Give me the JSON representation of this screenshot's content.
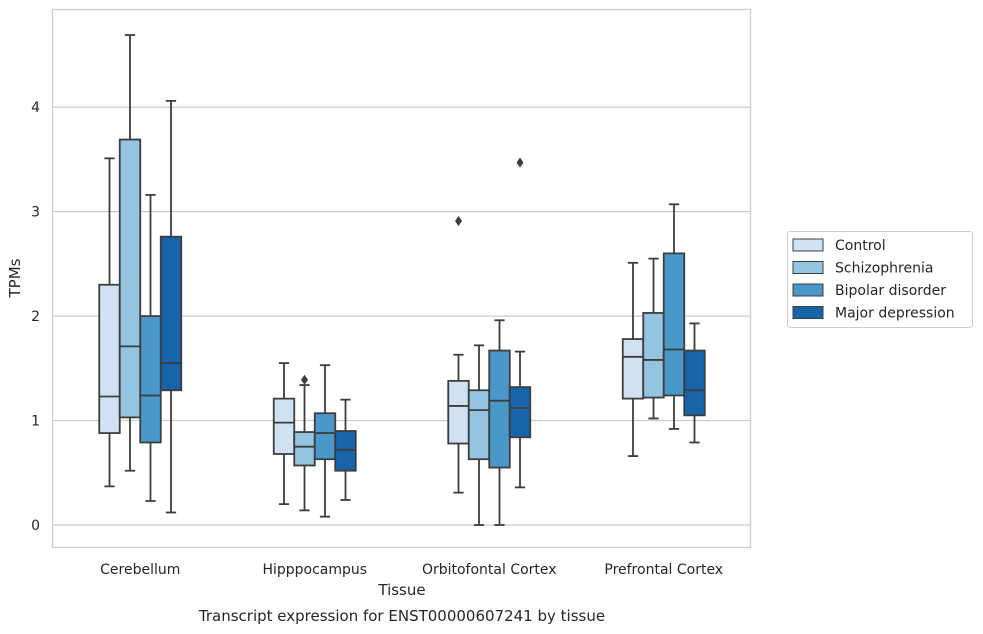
{
  "chart_data": {
    "type": "box",
    "title": "",
    "caption": "Transcript expression for ENST00000607241 by tissue",
    "xlabel": "Tissue",
    "ylabel": "TPMs",
    "ylim": [
      -0.22,
      4.93
    ],
    "yticks": [
      "0",
      "1",
      "2",
      "3",
      "4"
    ],
    "grid": true,
    "legend_position": "right",
    "categories": [
      "Cerebellum",
      "Hipppocampus",
      "Orbitofontal Cortex",
      "Prefrontal Cortex"
    ],
    "series": [
      {
        "name": "Control",
        "color": "#d0e1f2",
        "boxes": [
          {
            "whislo": 0.37,
            "q1": 0.88,
            "med": 1.23,
            "q3": 2.3,
            "whishi": 3.51,
            "fliers": []
          },
          {
            "whislo": 0.2,
            "q1": 0.68,
            "med": 0.98,
            "q3": 1.21,
            "whishi": 1.55,
            "fliers": []
          },
          {
            "whislo": 0.31,
            "q1": 0.78,
            "med": 1.14,
            "q3": 1.38,
            "whishi": 1.63,
            "fliers": [
              2.91
            ]
          },
          {
            "whislo": 0.66,
            "q1": 1.21,
            "med": 1.61,
            "q3": 1.78,
            "whishi": 2.51,
            "fliers": []
          }
        ]
      },
      {
        "name": "Schizophrenia",
        "color": "#94c4df",
        "boxes": [
          {
            "whislo": 0.52,
            "q1": 1.03,
            "med": 1.71,
            "q3": 3.69,
            "whishi": 4.69,
            "fliers": []
          },
          {
            "whislo": 0.14,
            "q1": 0.57,
            "med": 0.75,
            "q3": 0.89,
            "whishi": 1.34,
            "fliers": [
              1.39
            ]
          },
          {
            "whislo": 0.0,
            "q1": 0.63,
            "med": 1.1,
            "q3": 1.29,
            "whishi": 1.72,
            "fliers": []
          },
          {
            "whislo": 1.02,
            "q1": 1.22,
            "med": 1.58,
            "q3": 2.03,
            "whishi": 2.55,
            "fliers": []
          }
        ]
      },
      {
        "name": "Bipolar disorder",
        "color": "#4a98c9",
        "boxes": [
          {
            "whislo": 0.23,
            "q1": 0.79,
            "med": 1.24,
            "q3": 2.0,
            "whishi": 3.16,
            "fliers": []
          },
          {
            "whislo": 0.08,
            "q1": 0.63,
            "med": 0.88,
            "q3": 1.07,
            "whishi": 1.53,
            "fliers": []
          },
          {
            "whislo": 0.0,
            "q1": 0.55,
            "med": 1.19,
            "q3": 1.67,
            "whishi": 1.96,
            "fliers": []
          },
          {
            "whislo": 0.92,
            "q1": 1.24,
            "med": 1.68,
            "q3": 2.6,
            "whishi": 3.07,
            "fliers": []
          }
        ]
      },
      {
        "name": "Major depression",
        "color": "#1764ab",
        "boxes": [
          {
            "whislo": 0.12,
            "q1": 1.29,
            "med": 1.55,
            "q3": 2.76,
            "whishi": 4.06,
            "fliers": []
          },
          {
            "whislo": 0.24,
            "q1": 0.52,
            "med": 0.72,
            "q3": 0.9,
            "whishi": 1.2,
            "fliers": []
          },
          {
            "whislo": 0.36,
            "q1": 0.84,
            "med": 1.12,
            "q3": 1.32,
            "whishi": 1.66,
            "fliers": [
              3.47
            ]
          },
          {
            "whislo": 0.79,
            "q1": 1.05,
            "med": 1.29,
            "q3": 1.67,
            "whishi": 1.93,
            "fliers": []
          }
        ]
      }
    ]
  }
}
